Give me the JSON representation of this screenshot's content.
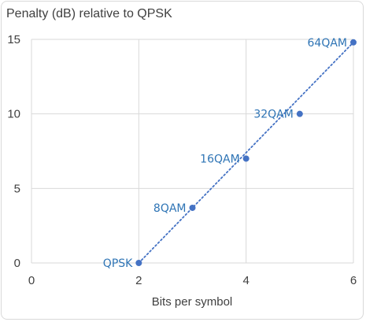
{
  "chart_data": {
    "type": "scatter",
    "title": "Penalty (dB) relative to QPSK",
    "xlabel": "Bits per symbol",
    "ylabel": "",
    "xlim": [
      0,
      6
    ],
    "ylim": [
      0,
      15
    ],
    "xticks": [
      0,
      2,
      4,
      6
    ],
    "yticks": [
      0,
      5,
      10,
      15
    ],
    "grid": true,
    "series": [
      {
        "points": [
          {
            "label": "QPSK",
            "x": 2,
            "y": 0
          },
          {
            "label": "8QAM",
            "x": 3,
            "y": 3.7
          },
          {
            "label": "16QAM",
            "x": 4,
            "y": 7.0
          },
          {
            "label": "32QAM",
            "x": 5,
            "y": 10.0
          },
          {
            "label": "64QAM",
            "x": 6,
            "y": 14.8
          }
        ]
      }
    ],
    "trendline": {
      "style": "dotted",
      "from": {
        "x": 2,
        "y": 0
      },
      "to": {
        "x": 6,
        "y": 14.8
      }
    },
    "colors": {
      "series": "#4472c4",
      "label": "#2e74b5",
      "grid": "#d9d9d9",
      "text": "#404040"
    }
  }
}
